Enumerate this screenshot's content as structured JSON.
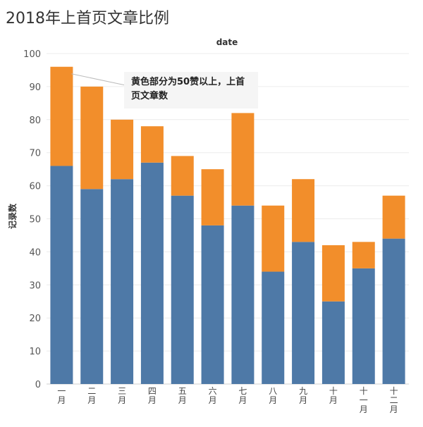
{
  "title": "2018年上首页文章比例",
  "chart_data": {
    "type": "bar",
    "stacked": true,
    "title": "2018年上首页文章比例",
    "header_label": "date",
    "ylabel": "记录数",
    "ylim": [
      0,
      100
    ],
    "yticks": [
      0,
      10,
      20,
      30,
      40,
      50,
      60,
      70,
      80,
      90,
      100
    ],
    "categories": [
      "一月",
      "二月",
      "三月",
      "四月",
      "五月",
      "六月",
      "七月",
      "八月",
      "九月",
      "十月",
      "十一月",
      "十二月"
    ],
    "series": [
      {
        "values": [
          66,
          59,
          62,
          67,
          57,
          48,
          54,
          34,
          43,
          25,
          35,
          44
        ],
        "color": "#4e79a7"
      },
      {
        "values": [
          30,
          31,
          18,
          11,
          12,
          17,
          28,
          20,
          19,
          17,
          8,
          13
        ],
        "color": "#f28e2b"
      }
    ],
    "totals": [
      96,
      90,
      80,
      78,
      69,
      65,
      82,
      54,
      62,
      42,
      43,
      57
    ],
    "annotation": {
      "line1": "黄色部分为50赞以上，上首",
      "line2": "页文章数",
      "target_category": "一月"
    },
    "grid": true
  }
}
